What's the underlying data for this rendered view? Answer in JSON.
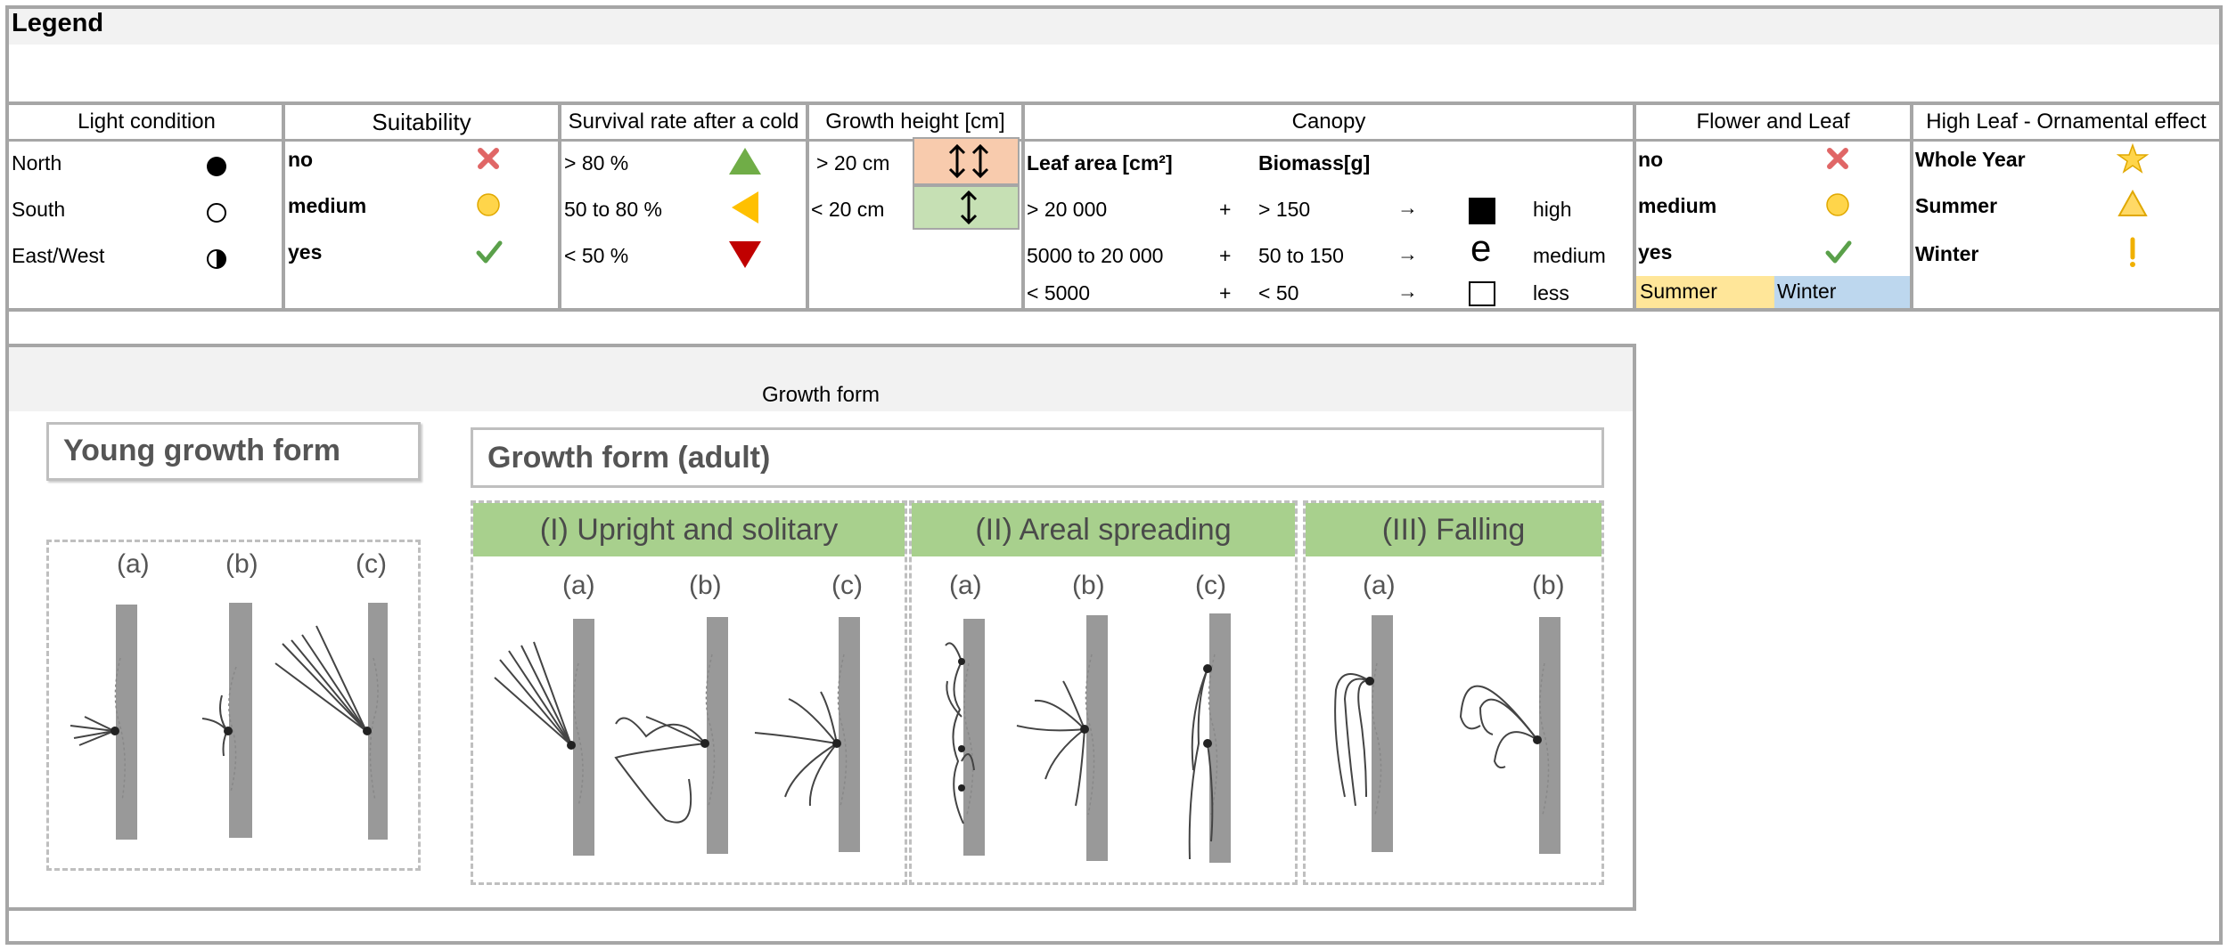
{
  "legend_title": "Legend",
  "light": {
    "title": "Light condition",
    "rows": [
      "North",
      "South",
      "East/West"
    ]
  },
  "suitability": {
    "title": "Suitability",
    "rows": [
      "no",
      "medium",
      "yes"
    ]
  },
  "survival": {
    "title": "Survival rate after a cold",
    "rows": [
      "> 80 %",
      "50 to 80 %",
      "< 50 %"
    ]
  },
  "growth_height": {
    "title": "Growth height [cm]",
    "rows": [
      "> 20 cm",
      "< 20 cm"
    ],
    "high_color": "#f8cbad",
    "low_color": "#c6e0b4"
  },
  "canopy": {
    "title": "Canopy",
    "col1_head": "Leaf area [cm²]",
    "col2_head": "Biomass[g]",
    "rows": [
      {
        "leaf": "> 20 000",
        "plus": "+",
        "bio": "> 150",
        "arrow": "→",
        "glyph": "",
        "label": "high"
      },
      {
        "leaf": "5000 to 20 000",
        "plus": "+",
        "bio": "50 to 150",
        "arrow": "→",
        "glyph": "e",
        "label": "medium"
      },
      {
        "leaf": "< 5000",
        "plus": "+",
        "bio": "< 50",
        "arrow": "→",
        "glyph": "",
        "label": "less"
      }
    ]
  },
  "flower_leaf": {
    "title": "Flower and Leaf",
    "rows": [
      "no",
      "medium",
      "yes"
    ],
    "summer": "Summer",
    "winter": "Winter",
    "summer_color": "#ffe699",
    "winter_color": "#bdd7ee"
  },
  "ornamental": {
    "title": "High Leaf - Ornamental effect",
    "rows": [
      "Whole Year",
      "Summer",
      "Winter"
    ]
  },
  "growth_form": {
    "title": "Growth form",
    "young_title": "Young growth form",
    "adult_title": "Growth form (adult)",
    "young_labels": [
      "(a)",
      "(b)",
      "(c)"
    ],
    "groups": [
      {
        "title": "(I) Upright and solitary",
        "labels": [
          "(a)",
          "(b)",
          "(c)"
        ]
      },
      {
        "title": "(II) Areal spreading",
        "labels": [
          "(a)",
          "(b)",
          "(c)"
        ]
      },
      {
        "title": "(III) Falling",
        "labels": [
          "(a)",
          "(b)"
        ]
      }
    ]
  },
  "colors": {
    "border": "#a6a6a6",
    "green_up": "#70ad47",
    "yellow_left": "#ffc000",
    "red_down": "#c00000",
    "cross": "#e06666",
    "check": "#5aa04a"
  }
}
